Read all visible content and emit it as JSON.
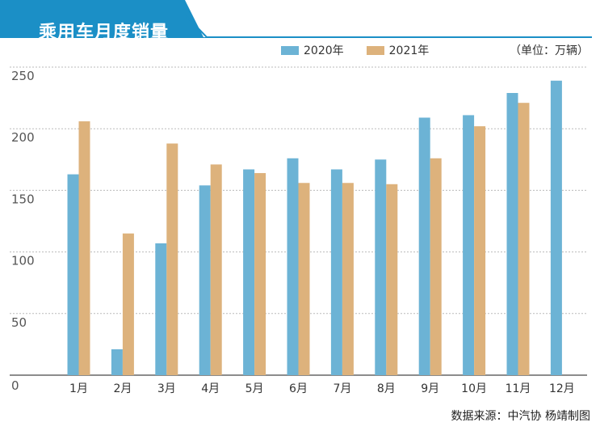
{
  "header": {
    "title": "乘用车月度销量"
  },
  "unit_note": "（单位：万辆）",
  "source_note": "数据来源：中汽协  杨靖制图",
  "colors": {
    "series_2020": "#6cb3d5",
    "series_2021": "#ddb27c",
    "accent": "#1b8fc6",
    "grid": "#bbbbbb",
    "axis_text": "#555555"
  },
  "chart_data": {
    "type": "bar",
    "title": "乘用车月度销量",
    "xlabel": "",
    "ylabel": "（单位：万辆）",
    "ylim": [
      0,
      250
    ],
    "yticks": [
      "0",
      "50",
      "100",
      "150",
      "200",
      "250"
    ],
    "grid": true,
    "legend_position": "top",
    "categories": [
      "1月",
      "2月",
      "3月",
      "4月",
      "5月",
      "6月",
      "7月",
      "8月",
      "9月",
      "10月",
      "11月",
      "12月"
    ],
    "series": [
      {
        "name": "2020年",
        "values": [
          163,
          21,
          107,
          154,
          167,
          176,
          167,
          175,
          209,
          211,
          229,
          239
        ]
      },
      {
        "name": "2021年",
        "values": [
          206,
          115,
          188,
          171,
          164,
          156,
          156,
          155,
          176,
          202,
          221,
          null
        ]
      }
    ]
  }
}
